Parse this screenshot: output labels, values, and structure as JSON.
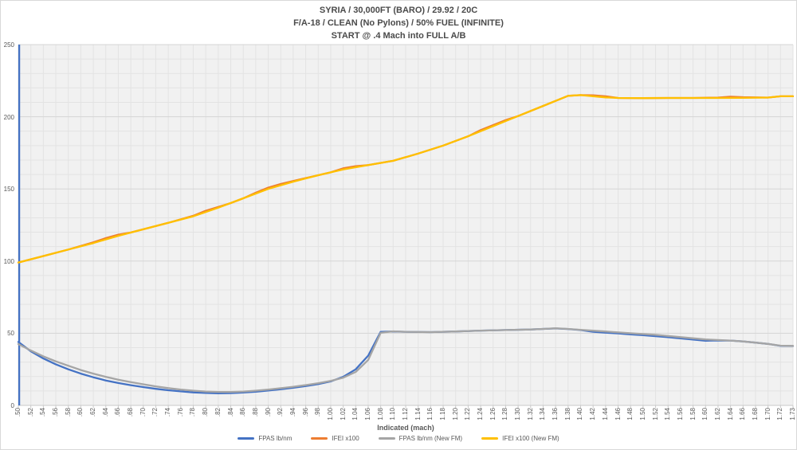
{
  "title": {
    "line1": "SYRIA / 30,000FT (BARO) / 29.92 / 20C",
    "line2": "F/A-18 / CLEAN (No Pylons) / 50% FUEL (INFINITE)",
    "line3": "START @ .4 Mach into FULL A/B"
  },
  "colors": {
    "plot_bg": "#F1F1F1",
    "grid_minor": "#E3E3E3",
    "grid_major": "#D5D5D5",
    "axis_line": "#C9C9C9",
    "tick_text": "#595959",
    "border": "#D9D9D9"
  },
  "chart_data": {
    "type": "line",
    "legend_position": "bottom",
    "x_axis": {
      "label": "Indicated (mach)",
      "categories": [
        ".50",
        ".52",
        ".54",
        ".56",
        ".58",
        ".60",
        ".62",
        ".64",
        ".66",
        ".68",
        ".70",
        ".72",
        ".74",
        ".76",
        ".78",
        ".80",
        ".82",
        ".84",
        ".86",
        ".88",
        ".90",
        ".92",
        ".94",
        ".96",
        ".98",
        "1.00",
        "1.02",
        "1.04",
        "1.06",
        "1.08",
        "1.10",
        "1.12",
        "1.14",
        "1.16",
        "1.18",
        "1.20",
        "1.22",
        "1.24",
        "1.26",
        "1.28",
        "1.30",
        "1.32",
        "1.34",
        "1.36",
        "1.38",
        "1.40",
        "1.42",
        "1.44",
        "1.46",
        "1.48",
        "1.50",
        "1.52",
        "1.54",
        "1.56",
        "1.58",
        "1.60",
        "1.62",
        "1.64",
        "1.66",
        "1.68",
        "1.70",
        "1.72",
        "1.73"
      ]
    },
    "y_axis": {
      "min": 0,
      "max": 250,
      "major_ticks": [
        0,
        50,
        100,
        150,
        200,
        250
      ],
      "minor_step": 10,
      "grid": true
    },
    "series": [
      {
        "name": "FPAS lb/nm",
        "color": "#4472C4",
        "start_spike": true,
        "points": [
          [
            0.5,
            44
          ],
          [
            0.52,
            37.5
          ],
          [
            0.54,
            32.5
          ],
          [
            0.56,
            28.5
          ],
          [
            0.58,
            25
          ],
          [
            0.6,
            22
          ],
          [
            0.62,
            19.5
          ],
          [
            0.64,
            17.3
          ],
          [
            0.66,
            15.5
          ],
          [
            0.68,
            14
          ],
          [
            0.7,
            12.7
          ],
          [
            0.72,
            11.5
          ],
          [
            0.74,
            10.5
          ],
          [
            0.76,
            9.7
          ],
          [
            0.78,
            9
          ],
          [
            0.8,
            8.6
          ],
          [
            0.82,
            8.4
          ],
          [
            0.84,
            8.5
          ],
          [
            0.86,
            8.9
          ],
          [
            0.88,
            9.5
          ],
          [
            0.9,
            10.3
          ],
          [
            0.92,
            11.2
          ],
          [
            0.94,
            12.2
          ],
          [
            0.96,
            13.4
          ],
          [
            0.98,
            14.8
          ],
          [
            1.0,
            16.6
          ],
          [
            1.02,
            19.8
          ],
          [
            1.04,
            25
          ],
          [
            1.06,
            34.5
          ],
          [
            1.08,
            51
          ],
          [
            1.1,
            51.2
          ],
          [
            1.12,
            51
          ],
          [
            1.16,
            50.8
          ],
          [
            1.2,
            51.2
          ],
          [
            1.24,
            51.8
          ],
          [
            1.28,
            52.2
          ],
          [
            1.32,
            52.6
          ],
          [
            1.34,
            53
          ],
          [
            1.36,
            53.3
          ],
          [
            1.38,
            52.9
          ],
          [
            1.4,
            52.2
          ],
          [
            1.42,
            51
          ],
          [
            1.44,
            50.4
          ],
          [
            1.46,
            49.9
          ],
          [
            1.48,
            49.2
          ],
          [
            1.5,
            48.6
          ],
          [
            1.54,
            47.3
          ],
          [
            1.56,
            46.4
          ],
          [
            1.58,
            45.6
          ],
          [
            1.6,
            44.8
          ],
          [
            1.62,
            45
          ],
          [
            1.64,
            44.9
          ],
          [
            1.66,
            44.3
          ],
          [
            1.68,
            43.5
          ],
          [
            1.7,
            42.6
          ],
          [
            1.72,
            41.3
          ],
          [
            1.73,
            41.1
          ]
        ]
      },
      {
        "name": "IFEI x100",
        "color": "#ED7D31",
        "points": [
          [
            0.5,
            99
          ],
          [
            0.54,
            103.5
          ],
          [
            0.58,
            108
          ],
          [
            0.62,
            113
          ],
          [
            0.64,
            115.9
          ],
          [
            0.66,
            118.3
          ],
          [
            0.68,
            119.8
          ],
          [
            0.7,
            122
          ],
          [
            0.74,
            126.5
          ],
          [
            0.78,
            131.4
          ],
          [
            0.8,
            134.9
          ],
          [
            0.82,
            137.5
          ],
          [
            0.84,
            140.2
          ],
          [
            0.86,
            143.5
          ],
          [
            0.88,
            147.4
          ],
          [
            0.9,
            150.9
          ],
          [
            0.92,
            153.4
          ],
          [
            0.94,
            155.5
          ],
          [
            0.98,
            159.5
          ],
          [
            1.0,
            161.5
          ],
          [
            1.02,
            164.3
          ],
          [
            1.04,
            165.8
          ],
          [
            1.06,
            166.5
          ],
          [
            1.1,
            169.5
          ],
          [
            1.14,
            174.5
          ],
          [
            1.18,
            180
          ],
          [
            1.22,
            186.5
          ],
          [
            1.24,
            190.8
          ],
          [
            1.26,
            194.2
          ],
          [
            1.28,
            197.7
          ],
          [
            1.3,
            200.5
          ],
          [
            1.34,
            207.5
          ],
          [
            1.38,
            214.5
          ],
          [
            1.4,
            215
          ],
          [
            1.42,
            214.9
          ],
          [
            1.44,
            214.2
          ],
          [
            1.46,
            213
          ],
          [
            1.5,
            212.9
          ],
          [
            1.54,
            213
          ],
          [
            1.58,
            213
          ],
          [
            1.62,
            213.3
          ],
          [
            1.64,
            213.9
          ],
          [
            1.66,
            213.6
          ],
          [
            1.7,
            213.3
          ],
          [
            1.72,
            214.2
          ],
          [
            1.73,
            214.2
          ]
        ]
      },
      {
        "name": "FPAS lb/nm (New FM)",
        "color": "#A5A5A5",
        "points": [
          [
            0.5,
            42.5
          ],
          [
            0.52,
            38
          ],
          [
            0.54,
            34
          ],
          [
            0.56,
            30.5
          ],
          [
            0.58,
            27.5
          ],
          [
            0.6,
            24.5
          ],
          [
            0.62,
            22
          ],
          [
            0.64,
            19.8
          ],
          [
            0.66,
            17.8
          ],
          [
            0.68,
            16.1
          ],
          [
            0.7,
            14.6
          ],
          [
            0.72,
            13.2
          ],
          [
            0.74,
            12
          ],
          [
            0.76,
            11
          ],
          [
            0.78,
            10.2
          ],
          [
            0.8,
            9.6
          ],
          [
            0.82,
            9.3
          ],
          [
            0.84,
            9.3
          ],
          [
            0.86,
            9.6
          ],
          [
            0.88,
            10.2
          ],
          [
            0.9,
            11
          ],
          [
            0.92,
            11.9
          ],
          [
            0.94,
            12.9
          ],
          [
            0.96,
            14.1
          ],
          [
            0.98,
            15.4
          ],
          [
            1.0,
            17
          ],
          [
            1.02,
            19.2
          ],
          [
            1.04,
            23.2
          ],
          [
            1.06,
            31.5
          ],
          [
            1.08,
            50.3
          ],
          [
            1.1,
            51.3
          ],
          [
            1.12,
            51
          ],
          [
            1.16,
            50.8
          ],
          [
            1.2,
            51.2
          ],
          [
            1.24,
            51.8
          ],
          [
            1.28,
            52.2
          ],
          [
            1.32,
            52.6
          ],
          [
            1.34,
            53
          ],
          [
            1.36,
            53.4
          ],
          [
            1.38,
            53
          ],
          [
            1.4,
            52.4
          ],
          [
            1.44,
            51.2
          ],
          [
            1.48,
            50
          ],
          [
            1.52,
            48.9
          ],
          [
            1.56,
            47.3
          ],
          [
            1.6,
            45.7
          ],
          [
            1.62,
            45.3
          ],
          [
            1.64,
            44.9
          ],
          [
            1.66,
            44.3
          ],
          [
            1.68,
            43.5
          ],
          [
            1.7,
            42.6
          ],
          [
            1.72,
            41.4
          ],
          [
            1.73,
            41.2
          ]
        ]
      },
      {
        "name": "IFEI x100 (New FM)",
        "color": "#FFC000",
        "points": [
          [
            0.5,
            99
          ],
          [
            0.54,
            103.5
          ],
          [
            0.58,
            108
          ],
          [
            0.62,
            112.5
          ],
          [
            0.64,
            115
          ],
          [
            0.66,
            117.5
          ],
          [
            0.7,
            122
          ],
          [
            0.74,
            126.5
          ],
          [
            0.78,
            131
          ],
          [
            0.8,
            134
          ],
          [
            0.82,
            137
          ],
          [
            0.86,
            143.5
          ],
          [
            0.9,
            150
          ],
          [
            0.94,
            155
          ],
          [
            0.98,
            159.5
          ],
          [
            1.02,
            163.5
          ],
          [
            1.06,
            166.5
          ],
          [
            1.1,
            169.5
          ],
          [
            1.14,
            174.5
          ],
          [
            1.18,
            180
          ],
          [
            1.22,
            186.5
          ],
          [
            1.26,
            193.5
          ],
          [
            1.3,
            200.5
          ],
          [
            1.34,
            207.5
          ],
          [
            1.38,
            214.5
          ],
          [
            1.4,
            215
          ],
          [
            1.42,
            214.2
          ],
          [
            1.44,
            213.4
          ],
          [
            1.46,
            213
          ],
          [
            1.5,
            212.9
          ],
          [
            1.54,
            213
          ],
          [
            1.58,
            213
          ],
          [
            1.62,
            213
          ],
          [
            1.66,
            213.1
          ],
          [
            1.7,
            213.3
          ],
          [
            1.72,
            214.2
          ],
          [
            1.73,
            214.2
          ]
        ]
      }
    ]
  }
}
